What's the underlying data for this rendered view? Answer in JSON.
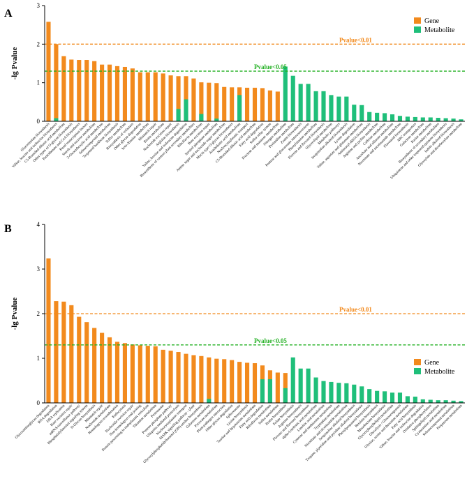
{
  "colors": {
    "gene": "#f28a1d",
    "metabolite": "#1fbf7a",
    "p01": "#f28a1d",
    "p05": "#22b022",
    "axis": "#000000"
  },
  "chart_data": [
    {
      "panel_label": "A",
      "type": "bar",
      "ylabel": "-lg Pvalue",
      "ylim": [
        0,
        3
      ],
      "yticks": [
        "0",
        "1",
        "2",
        "3"
      ],
      "thresholds": [
        {
          "label": "Pvalue<0.01",
          "value": 2.0,
          "color_key": "p01"
        },
        {
          "label": "Pvalue<0.05",
          "value": 1.3,
          "color_key": "p05"
        }
      ],
      "legend": [
        "Gene",
        "Metabolite"
      ],
      "categories": [
        "Glucosinolate biosynthesis",
        "Valine, leucine and isoleucine biosynthesis",
        "C5-Branched dibasic acid metabolism",
        "Other types of O-glycan biosynthesis",
        "Pantothenate and CoA biosynthesis",
        "Basal transcription factors",
        "Starch and sucrose metabolism",
        "2-Oxocarboxylic acid metabolism",
        "Selenocompound metabolism",
        "Terpenoid backbone biosynthesis",
        "Sulfur metabolism",
        "Biosynthesis of cofactors",
        "Other glycan degradation",
        "beta-Alanine metabolism",
        "Mismatch repair",
        "Biotin metabolism",
        "Nucleotide excision repair",
        "Arginine biosynthesis",
        "Valine, leucine and isoleucine degradation",
        "Biosynthesis of various plant secondary metabolites",
        "Riboflavin metabolism",
        "Base excision repair",
        "Inositol phosphate metabolism",
        "Amino sugar and nucleotide sugar metabolism",
        "Mucin type O-glycan biosynthesis",
        "Arachidonic acid metabolism",
        "Nucleocytoplasmic transport",
        "C5-Branched dibasic acid metabolism",
        "Fatty acid degradation",
        "Sulfur relay system",
        "Fructose and mannose metabolism",
        "Nitrogen metabolism",
        "Pyrimidine metabolism",
        "Zeatin biosynthesis",
        "Pentose and glucuronate interconversions",
        "Phenylalanine metabolism",
        "Flavone and flavonol biosynthesis",
        "Glycerolipid metabolism",
        "Metabolic pathways",
        "Isoquinoline alkaloid biosynthesis",
        "Lysine degradation",
        "Valine, aspartate and glutamate metabolism",
        "Aminoacyl-tRNA biosynthesis",
        "Arginine and proline metabolism",
        "Caffeine metabolism",
        "Ascorbate and aldarate metabolism",
        "Nicotinate and nicotinamide metabolism",
        "Flavonoid biosynthesis",
        "ABC transporters",
        "Galactose metabolism",
        "Purine metabolism",
        "Biosynthesis of secondary metabolites",
        "Ubiquinone and other terpenoid-quinone biosynthesis",
        "Indole alkaloid biosynthesis",
        "Glyoxylate and dicarboxylate metabolism"
      ],
      "series": [
        {
          "name": "Gene",
          "values": [
            2.58,
            2.0,
            1.69,
            1.6,
            1.59,
            1.59,
            1.56,
            1.47,
            1.47,
            1.43,
            1.41,
            1.37,
            1.27,
            1.27,
            1.27,
            1.24,
            1.19,
            1.17,
            1.17,
            1.11,
            1.01,
            1.0,
            0.99,
            0.89,
            0.88,
            0.88,
            0.87,
            0.87,
            0.86,
            0.8,
            0.77,
            0,
            0,
            0,
            0,
            0,
            0,
            0,
            0,
            0,
            0,
            0,
            0,
            0,
            0,
            0,
            0,
            0,
            0,
            0,
            0,
            0,
            0,
            0,
            0
          ]
        },
        {
          "name": "Metabolite",
          "values": [
            0,
            0.08,
            0,
            0,
            0,
            0,
            0,
            0,
            0,
            0,
            0,
            0,
            0,
            0,
            0,
            0,
            0,
            0.32,
            0.57,
            0,
            0.19,
            0,
            0.07,
            0,
            0,
            0.68,
            0,
            0,
            0,
            0,
            0,
            1.42,
            1.18,
            0.97,
            0.97,
            0.78,
            0.78,
            0.68,
            0.64,
            0.64,
            0.43,
            0.42,
            0.24,
            0.22,
            0.21,
            0.18,
            0.14,
            0.12,
            0.11,
            0.1,
            0.1,
            0.09,
            0.08,
            0.07,
            0.05
          ]
        }
      ]
    },
    {
      "panel_label": "B",
      "type": "bar",
      "ylabel": "-lg Pvalue",
      "ylim": [
        0,
        4
      ],
      "yticks": [
        "0",
        "1",
        "2",
        "3",
        "4"
      ],
      "thresholds": [
        {
          "label": "Pvalue<0.01",
          "value": 2.0,
          "color_key": "p01"
        },
        {
          "label": "Pvalue<0.05",
          "value": 1.3,
          "color_key": "p05"
        }
      ],
      "legend": [
        "Gene",
        "Metabolite"
      ],
      "categories": [
        "Glycosaminoglycan degradation",
        "RNA degradation",
        "DNA replication",
        "Base excision repair",
        "mRNA surveillance pathway",
        "Phosphatidylinositol signaling system",
        "N-Glycan biosynthesis",
        "Mismatch repair",
        "Nucleotide metabolism",
        "Homologous recombination",
        "Endocytosis",
        "Nucleotide excision repair",
        "Non-homologous end-joining",
        "Protein processing in endoplasmic reticulum",
        "Thiamine metabolism",
        "Proteasome",
        "Pentose phosphate pathway",
        "Ubiquitin mediated proteolysis",
        "Nucleocytoplasmic transport",
        "MAPK signaling pathway - plant",
        "Glycosylphosphatidylinositol (GPI)-anchor biosynthesis",
        "Galactose metabolism",
        "Pyruvate metabolism",
        "Plant-pathogen interaction",
        "Other glycan degradation",
        "Spliceosome",
        "Lysine biosynthesis",
        "Taurine and hypotaurine metabolism",
        "Fatty acid degradation",
        "Riboflavin metabolism",
        "Sulfur metabolism",
        "Zeatin biosynthesis",
        "Folate biosynthesis",
        "Arginine biosynthesis",
        "Flavone and flavonol biosynthesis",
        "alpha-Linolenic acid metabolism",
        "Linoleic acid metabolism",
        "Cysteine and methionine metabolism",
        "Tryptophan metabolism",
        "Nicotinate and nicotinamide metabolism",
        "Isoquinoline alkaloid biosynthesis",
        "Tropane, piperidine and pyridine alkaloid biosynthesis",
        "Phenylpropanoid biosynthesis",
        "Betalain biosynthesis",
        "Monobactam biosynthesis",
        "Glycerophospholipid metabolism",
        "Glycolysis / Gluconeogenesis",
        "Glycine, serine and threonine metabolism",
        "Fatty acid biosynthesis",
        "Valine, leucine and isoleucine degradation",
        "Oxidative phosphorylation",
        "Sphingolipid metabolism",
        "Cyanoamino acid metabolism",
        "Selenocompound metabolism",
        "Propanoate metabolism"
      ],
      "series": [
        {
          "name": "Gene",
          "values": [
            3.24,
            2.28,
            2.27,
            2.19,
            1.93,
            1.81,
            1.68,
            1.57,
            1.47,
            1.37,
            1.34,
            1.31,
            1.29,
            1.28,
            1.27,
            1.19,
            1.17,
            1.14,
            1.1,
            1.07,
            1.05,
            1.02,
            0.99,
            0.98,
            0.96,
            0.92,
            0.9,
            0.89,
            0.84,
            0.73,
            0.68,
            0.67,
            0,
            0,
            0,
            0,
            0,
            0,
            0,
            0,
            0,
            0,
            0,
            0,
            0,
            0,
            0,
            0,
            0,
            0,
            0,
            0,
            0,
            0,
            0
          ]
        },
        {
          "name": "Metabolite",
          "values": [
            0,
            0,
            0,
            0,
            0,
            0,
            0,
            0,
            0,
            0,
            0,
            0,
            0,
            0,
            0,
            0,
            0,
            0,
            0,
            0,
            0,
            0.09,
            0,
            0,
            0,
            0,
            0,
            0,
            0.53,
            0.53,
            0,
            0.33,
            1.02,
            0.77,
            0.77,
            0.57,
            0.49,
            0.47,
            0.45,
            0.44,
            0.41,
            0.37,
            0.31,
            0.27,
            0.26,
            0.23,
            0.23,
            0.15,
            0.14,
            0.08,
            0.07,
            0.06,
            0.06,
            0.05,
            0.04
          ]
        }
      ]
    }
  ]
}
